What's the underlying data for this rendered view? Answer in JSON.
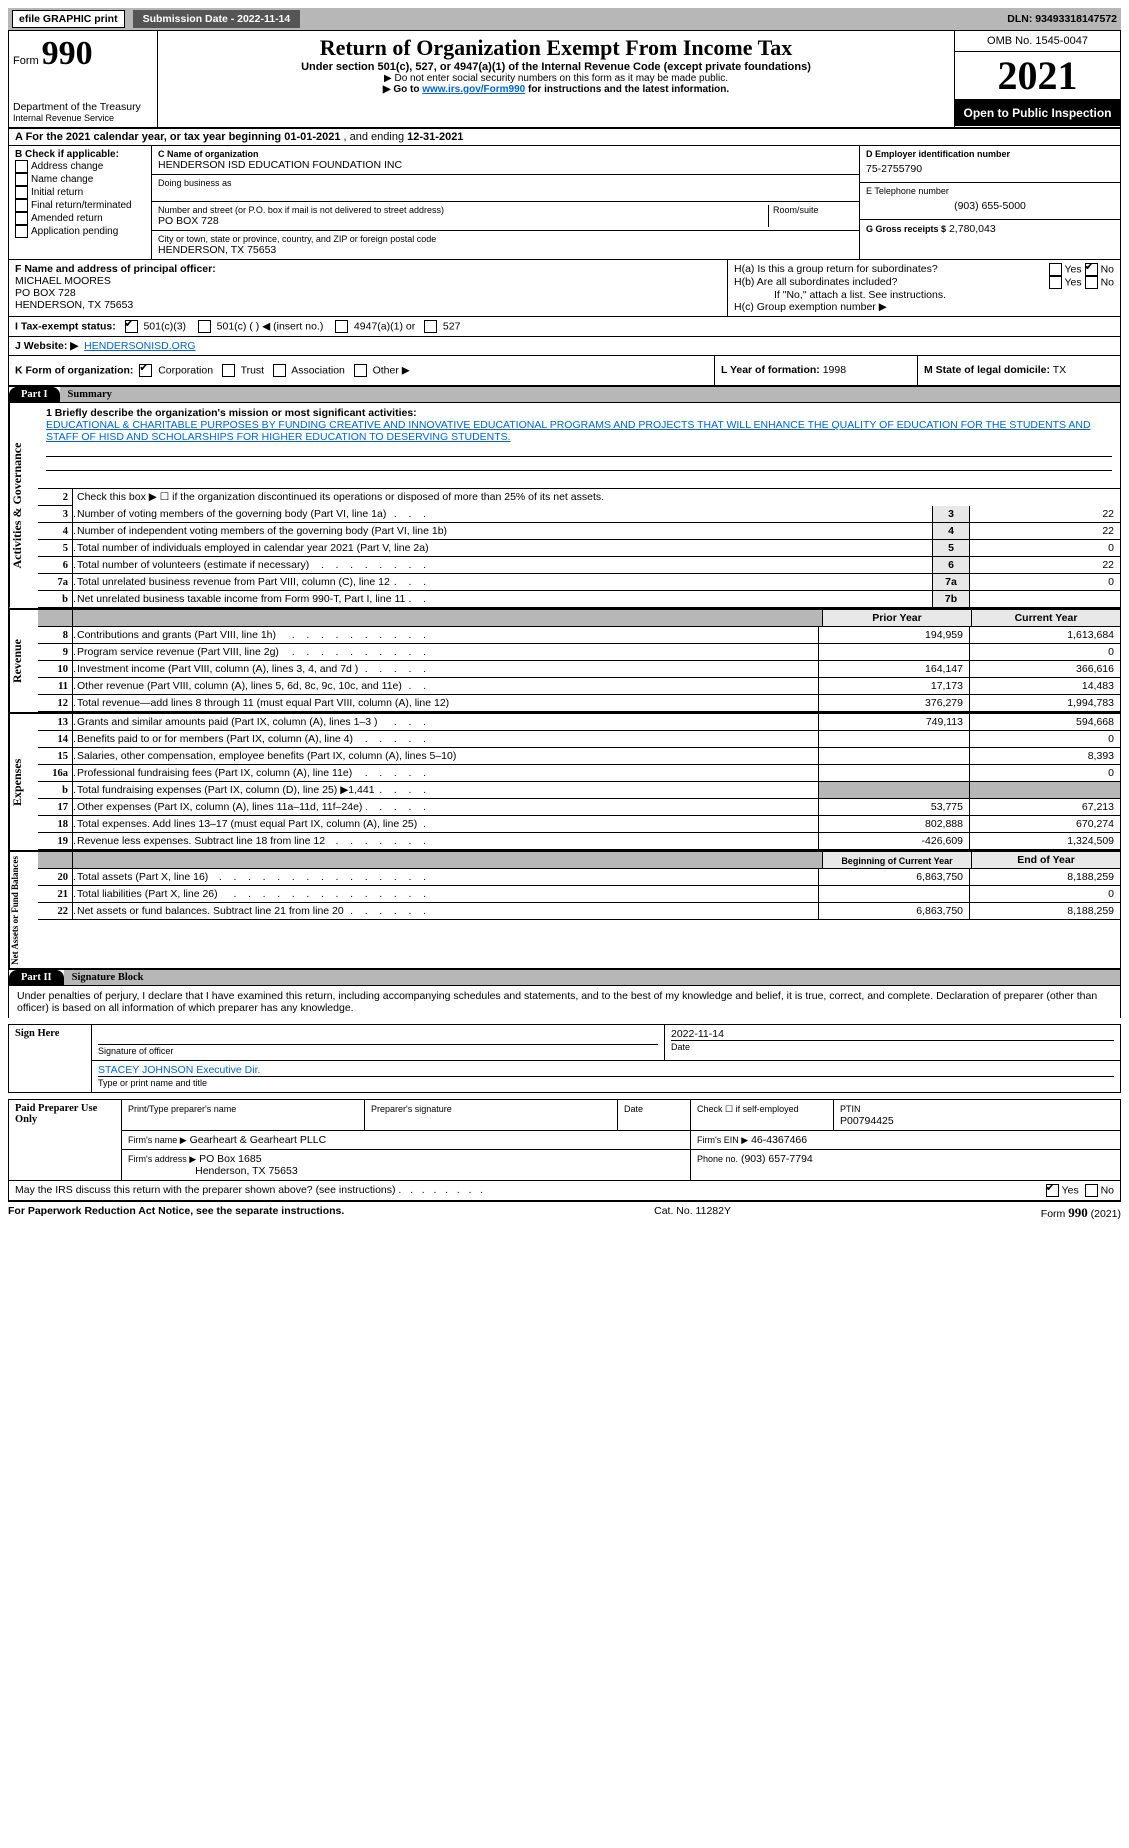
{
  "topbar": {
    "efile_label": "efile GRAPHIC print",
    "submission_label": "Submission Date - 2022-11-14",
    "dln_label": "DLN: 93493318147572"
  },
  "header": {
    "form_label": "Form",
    "form_number": "990",
    "dept1": "Department of the Treasury",
    "dept2": "Internal Revenue Service",
    "title": "Return of Organization Exempt From Income Tax",
    "subtitle": "Under section 501(c), 527, or 4947(a)(1) of the Internal Revenue Code (except private foundations)",
    "line1": "▶ Do not enter social security numbers on this form as it may be made public.",
    "line2_pre": "▶ Go to ",
    "line2_link": "www.irs.gov/Form990",
    "line2_post": " for instructions and the latest information.",
    "omb": "OMB No. 1545-0047",
    "year": "2021",
    "open_public": "Open to Public Inspection"
  },
  "row_a": {
    "text_pre": "A For the 2021 calendar year, or tax year beginning ",
    "begin": "01-01-2021",
    "mid": "   , and ending ",
    "end": "12-31-2021"
  },
  "box_b": {
    "label": "B Check if applicable:",
    "items": [
      "Address change",
      "Name change",
      "Initial return",
      "Final return/terminated",
      "Amended return",
      "Application pending"
    ]
  },
  "box_c": {
    "name_label": "C Name of organization",
    "name": "HENDERSON ISD EDUCATION FOUNDATION INC",
    "dba_label": "Doing business as",
    "addr_label": "Number and street (or P.O. box if mail is not delivered to street address)",
    "room_label": "Room/suite",
    "addr": "PO BOX 728",
    "city_label": "City or town, state or province, country, and ZIP or foreign postal code",
    "city": "HENDERSON, TX  75653"
  },
  "box_d": {
    "label": "D Employer identification number",
    "value": "75-2755790"
  },
  "box_e": {
    "label": "E Telephone number",
    "value": "(903) 655-5000"
  },
  "box_g": {
    "label": "G Gross receipts $",
    "value": "2,780,043"
  },
  "box_f": {
    "label": "F  Name and address of principal officer:",
    "name": "MICHAEL MOORES",
    "addr1": "PO BOX 728",
    "addr2": "HENDERSON, TX  75653"
  },
  "box_h": {
    "a_label": "H(a)  Is this a group return for subordinates?",
    "b_label": "H(b)  Are all subordinates included?",
    "b_note": "If \"No,\" attach a list. See instructions.",
    "c_label": "H(c)  Group exemption number ▶",
    "yes": "Yes",
    "no": "No"
  },
  "row_i": {
    "label": "I  Tax-exempt status:",
    "o1": "501(c)(3)",
    "o2": "501(c) (   ) ◀ (insert no.)",
    "o3": "4947(a)(1) or",
    "o4": "527"
  },
  "row_j": {
    "label": "J  Website: ▶",
    "value": "HENDERSONISD.ORG"
  },
  "row_k": {
    "label": "K Form of organization:",
    "o1": "Corporation",
    "o2": "Trust",
    "o3": "Association",
    "o4": "Other ▶",
    "l_label": "L Year of formation:",
    "l_val": "1998",
    "m_label": "M State of legal domicile:",
    "m_val": "TX"
  },
  "part1": {
    "tag": "Part I",
    "title": "Summary"
  },
  "summary": {
    "q1_label": "1  Briefly describe the organization's mission or most significant activities:",
    "mission": "EDUCATIONAL & CHARITABLE PURPOSES BY FUNDING CREATIVE AND INNOVATIVE EDUCATIONAL PROGRAMS AND PROJECTS THAT WILL ENHANCE THE QUALITY OF EDUCATION FOR THE STUDENTS AND STAFF OF HISD AND SCHOLARSHIPS FOR HIGHER EDUCATION TO DESERVING STUDENTS.",
    "q2": "Check this box ▶ ☐  if the organization discontinued its operations or disposed of more than 25% of its net assets.",
    "lines_ag": [
      {
        "n": "3",
        "t": "Number of voting members of the governing body (Part VI, line 1a)",
        "b": "3",
        "v": "22"
      },
      {
        "n": "4",
        "t": "Number of independent voting members of the governing body (Part VI, line 1b)",
        "b": "4",
        "v": "22"
      },
      {
        "n": "5",
        "t": "Total number of individuals employed in calendar year 2021 (Part V, line 2a)",
        "b": "5",
        "v": "0"
      },
      {
        "n": "6",
        "t": "Total number of volunteers (estimate if necessary)",
        "b": "6",
        "v": "22"
      },
      {
        "n": "7a",
        "t": "Total unrelated business revenue from Part VIII, column (C), line 12",
        "b": "7a",
        "v": "0"
      },
      {
        "n": "b",
        "t": "Net unrelated business taxable income from Form 990-T, Part I, line 11",
        "b": "7b",
        "v": ""
      }
    ],
    "col_prior": "Prior Year",
    "col_curr": "Current Year",
    "rev": [
      {
        "n": "8",
        "t": "Contributions and grants (Part VIII, line 1h)",
        "p": "194,959",
        "c": "1,613,684"
      },
      {
        "n": "9",
        "t": "Program service revenue (Part VIII, line 2g)",
        "p": "",
        "c": "0"
      },
      {
        "n": "10",
        "t": "Investment income (Part VIII, column (A), lines 3, 4, and 7d )",
        "p": "164,147",
        "c": "366,616"
      },
      {
        "n": "11",
        "t": "Other revenue (Part VIII, column (A), lines 5, 6d, 8c, 9c, 10c, and 11e)",
        "p": "17,173",
        "c": "14,483"
      },
      {
        "n": "12",
        "t": "Total revenue—add lines 8 through 11 (must equal Part VIII, column (A), line 12)",
        "p": "376,279",
        "c": "1,994,783"
      }
    ],
    "exp": [
      {
        "n": "13",
        "t": "Grants and similar amounts paid (Part IX, column (A), lines 1–3 )",
        "p": "749,113",
        "c": "594,668"
      },
      {
        "n": "14",
        "t": "Benefits paid to or for members (Part IX, column (A), line 4)",
        "p": "",
        "c": "0"
      },
      {
        "n": "15",
        "t": "Salaries, other compensation, employee benefits (Part IX, column (A), lines 5–10)",
        "p": "",
        "c": "8,393"
      },
      {
        "n": "16a",
        "t": "Professional fundraising fees (Part IX, column (A), line 11e)",
        "p": "",
        "c": "0"
      },
      {
        "n": "b",
        "t": "Total fundraising expenses (Part IX, column (D), line 25) ▶1,441",
        "p": "GREY",
        "c": "GREY"
      },
      {
        "n": "17",
        "t": "Other expenses (Part IX, column (A), lines 11a–11d, 11f–24e)",
        "p": "53,775",
        "c": "67,213"
      },
      {
        "n": "18",
        "t": "Total expenses. Add lines 13–17 (must equal Part IX, column (A), line 25)",
        "p": "802,888",
        "c": "670,274"
      },
      {
        "n": "19",
        "t": "Revenue less expenses. Subtract line 18 from line 12",
        "p": "-426,609",
        "c": "1,324,509"
      }
    ],
    "col_begin": "Beginning of Current Year",
    "col_end": "End of Year",
    "net": [
      {
        "n": "20",
        "t": "Total assets (Part X, line 16)",
        "p": "6,863,750",
        "c": "8,188,259"
      },
      {
        "n": "21",
        "t": "Total liabilities (Part X, line 26)",
        "p": "",
        "c": "0"
      },
      {
        "n": "22",
        "t": "Net assets or fund balances. Subtract line 21 from line 20",
        "p": "6,863,750",
        "c": "8,188,259"
      }
    ],
    "vlab_ag": "Activities & Governance",
    "vlab_rev": "Revenue",
    "vlab_exp": "Expenses",
    "vlab_net": "Net Assets or Fund Balances"
  },
  "part2": {
    "tag": "Part II",
    "title": "Signature Block"
  },
  "sig": {
    "decl": "Under penalties of perjury, I declare that I have examined this return, including accompanying schedules and statements, and to the best of my knowledge and belief, it is true, correct, and complete. Declaration of preparer (other than officer) is based on all information of which preparer has any knowledge.",
    "sign_here": "Sign Here",
    "sig_officer": "Signature of officer",
    "date_lbl": "Date",
    "sig_date": "2022-11-14",
    "typed": "STACEY JOHNSON Executive Dir.",
    "typed_lbl": "Type or print name and title",
    "paid": "Paid Preparer Use Only",
    "prep_name_lbl": "Print/Type preparer's name",
    "prep_sig_lbl": "Preparer's signature",
    "check_lbl": "Check ☐ if self-employed",
    "ptin_lbl": "PTIN",
    "ptin": "P00794425",
    "firm_name_lbl": "Firm's name   ▶",
    "firm_name": "Gearheart & Gearheart PLLC",
    "firm_ein_lbl": "Firm's EIN ▶",
    "firm_ein": "46-4367466",
    "firm_addr_lbl": "Firm's address ▶",
    "firm_addr1": "PO Box 1685",
    "firm_addr2": "Henderson, TX  75653",
    "phone_lbl": "Phone no.",
    "phone": "(903) 657-7794",
    "discuss": "May the IRS discuss this return with the preparer shown above? (see instructions)",
    "yes": "Yes",
    "no": "No"
  },
  "footer": {
    "left": "For Paperwork Reduction Act Notice, see the separate instructions.",
    "mid": "Cat. No. 11282Y",
    "right_pre": "Form ",
    "right_form": "990",
    "right_post": " (2021)"
  }
}
